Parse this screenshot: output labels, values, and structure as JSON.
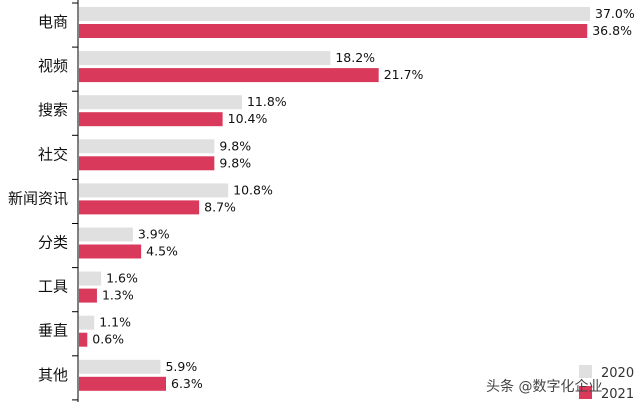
{
  "chart_data": {
    "type": "bar",
    "orientation": "horizontal",
    "categories": [
      "电商",
      "视频",
      "搜索",
      "社交",
      "新闻资讯",
      "分类",
      "工具",
      "垂直",
      "其他"
    ],
    "series": [
      {
        "name": "2020",
        "color": "#e0e0e0",
        "values": [
          37.0,
          18.2,
          11.8,
          9.8,
          10.8,
          3.9,
          1.6,
          1.1,
          5.9
        ],
        "labels": [
          "37.0%",
          "18.2%",
          "11.8%",
          "9.8%",
          "10.8%",
          "3.9%",
          "1.6%",
          "1.1%",
          "5.9%"
        ]
      },
      {
        "name": "2021",
        "color": "#d93a5c",
        "values": [
          36.8,
          21.7,
          10.4,
          9.8,
          8.7,
          4.5,
          1.3,
          0.6,
          6.3
        ],
        "labels": [
          "36.8%",
          "21.7%",
          "10.4%",
          "9.8%",
          "8.7%",
          "4.5%",
          "1.3%",
          "0.6%",
          "6.3%"
        ]
      }
    ],
    "xlim": [
      0,
      37
    ],
    "grid": false,
    "legend": "bottom-right",
    "title": "",
    "xlabel": "",
    "ylabel": ""
  },
  "watermark": "头条 @数字化企业"
}
